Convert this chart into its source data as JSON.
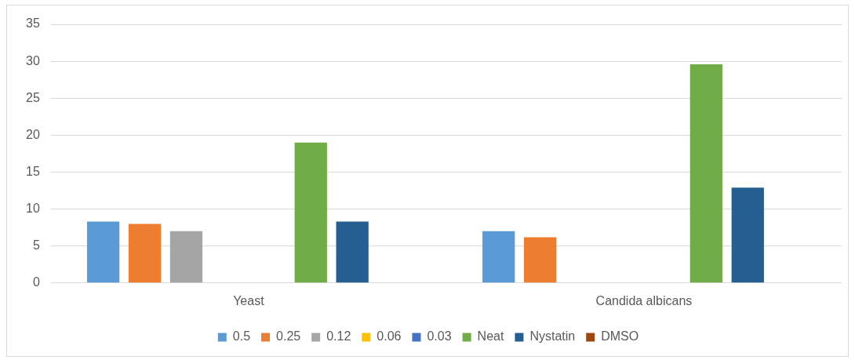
{
  "chart_data": {
    "type": "bar",
    "categories": [
      "Yeast",
      "Candida albicans"
    ],
    "series": [
      {
        "name": "0.5",
        "color": "#5b9bd5",
        "values": [
          8.3,
          7
        ]
      },
      {
        "name": "0.25",
        "color": "#ed7d31",
        "values": [
          8,
          6.2
        ]
      },
      {
        "name": "0.12",
        "color": "#a5a5a5",
        "values": [
          7,
          0
        ]
      },
      {
        "name": "0.06",
        "color": "#ffc000",
        "values": [
          0,
          0
        ]
      },
      {
        "name": "0.03",
        "color": "#4472c4",
        "values": [
          0,
          0
        ]
      },
      {
        "name": "Neat",
        "color": "#70ad47",
        "values": [
          19,
          29.6
        ]
      },
      {
        "name": "Nystatin",
        "color": "#255e91",
        "values": [
          8.3,
          12.9
        ]
      },
      {
        "name": "DMSO",
        "color": "#9e480e",
        "values": [
          0,
          0
        ]
      }
    ],
    "ylim": [
      0,
      35
    ],
    "yticks": [
      0,
      5,
      10,
      15,
      20,
      25,
      30,
      35
    ],
    "grid": "y",
    "legend": "bottom"
  }
}
